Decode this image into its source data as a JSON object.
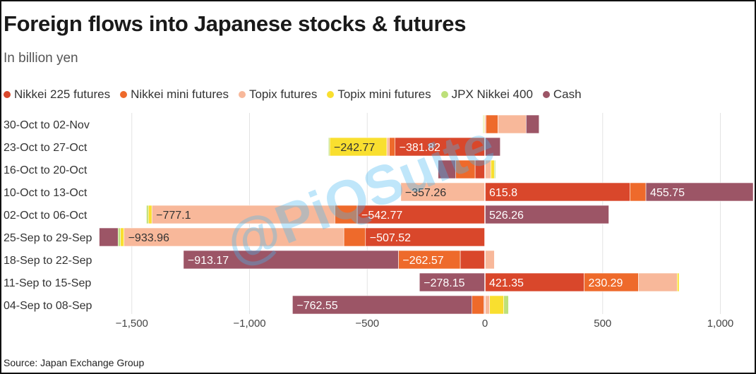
{
  "title": "Foreign flows into Japanese stocks & futures",
  "subtitle": "In billion yen",
  "source": "Source: Japan Exchange Group",
  "watermark": "@PiQSuite",
  "colors": {
    "Nikkei 225 futures": "#d9472b",
    "Nikkei mini futures": "#ee6a2b",
    "Topix futures": "#f8b89a",
    "Topix mini futures": "#f9df2f",
    "JPX Nikkei 400": "#bde07a",
    "Cash": "#9c5566"
  },
  "chart_data": {
    "type": "bar",
    "orientation": "horizontal",
    "stacked": true,
    "xlim": [
      -1650,
      1150
    ],
    "xticks": [
      -1500,
      -1000,
      -500,
      0,
      500,
      1000
    ],
    "xtick_labels": [
      "−1,500",
      "−1,000",
      "−500",
      "0",
      "500",
      "1,000"
    ],
    "categories": [
      "30-Oct to 02-Nov",
      "23-Oct to 27-Oct",
      "16-Oct to 20-Oct",
      "10-Oct to 13-Oct",
      "02-Oct to 06-Oct",
      "25-Sep to 29-Sep",
      "18-Sep to 22-Sep",
      "11-Sep to 15-Sep",
      "04-Sep to 08-Sep"
    ],
    "series": [
      {
        "name": "Nikkei 225 futures",
        "values": [
          5,
          -381.82,
          -42,
          615.8,
          -542.77,
          -507.52,
          -105,
          421.35,
          -5
        ]
      },
      {
        "name": "Nikkei mini futures",
        "values": [
          50,
          -25,
          -82,
          68,
          -95,
          -92,
          -262.57,
          230.29,
          -50
        ]
      },
      {
        "name": "Topix futures",
        "values": [
          120,
          -10,
          25,
          -357.26,
          -777.1,
          -933.96,
          40,
          165,
          20
        ]
      },
      {
        "name": "Topix mini futures",
        "values": [
          -5,
          -242.77,
          15,
          0,
          -15,
          -15,
          0,
          8,
          60
        ]
      },
      {
        "name": "JPX Nikkei 400",
        "values": [
          -3,
          -5,
          5,
          0,
          -8,
          -10,
          0,
          0,
          20
        ]
      },
      {
        "name": "Cash",
        "values": [
          55,
          65,
          -75,
          455.75,
          526.26,
          -80,
          -913.17,
          -278.15,
          -762.55
        ]
      }
    ],
    "data_labels": [
      {
        "category": 1,
        "series": "Topix mini futures",
        "text": "−242.77"
      },
      {
        "category": 1,
        "series": "Nikkei 225 futures",
        "text": "−381.82"
      },
      {
        "category": 3,
        "series": "Topix futures",
        "text": "−357.26"
      },
      {
        "category": 3,
        "series": "Nikkei 225 futures",
        "text": "615.8"
      },
      {
        "category": 3,
        "series": "Cash",
        "text": "455.75"
      },
      {
        "category": 4,
        "series": "Topix futures",
        "text": "−777.1"
      },
      {
        "category": 4,
        "series": "Nikkei 225 futures",
        "text": "−542.77"
      },
      {
        "category": 4,
        "series": "Cash",
        "text": "526.26"
      },
      {
        "category": 5,
        "series": "Topix futures",
        "text": "−933.96"
      },
      {
        "category": 5,
        "series": "Nikkei 225 futures",
        "text": "−507.52"
      },
      {
        "category": 6,
        "series": "Cash",
        "text": "−913.17"
      },
      {
        "category": 6,
        "series": "Nikkei mini futures",
        "text": "−262.57"
      },
      {
        "category": 7,
        "series": "Cash",
        "text": "−278.15"
      },
      {
        "category": 7,
        "series": "Nikkei 225 futures",
        "text": "421.35"
      },
      {
        "category": 7,
        "series": "Nikkei mini futures",
        "text": "230.29"
      },
      {
        "category": 8,
        "series": "Cash",
        "text": "−762.55"
      }
    ],
    "grid": true,
    "legend_position": "top-left"
  }
}
